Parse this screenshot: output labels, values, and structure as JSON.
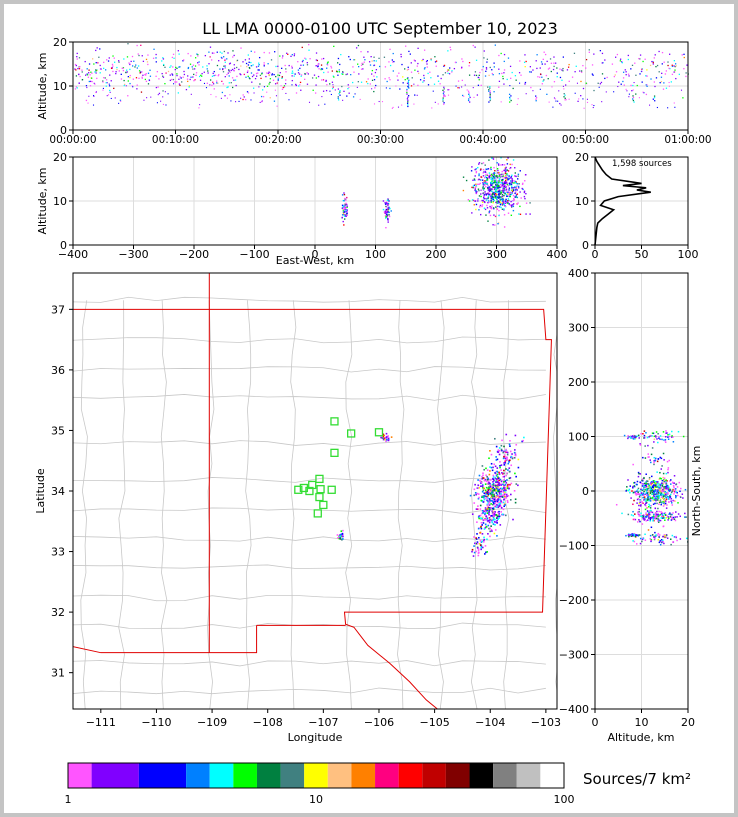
{
  "title": "LL LMA 0000-0100 UTC September 10, 2023",
  "chart_data": [
    {
      "type": "scatter",
      "panel": "time-height",
      "ylabel": "Altitude, km",
      "ylim": [
        0,
        20
      ],
      "yticks": [
        "0",
        "10",
        "20"
      ],
      "xticks": [
        "00:00:00",
        "00:10:00",
        "00:20:00",
        "00:30:00",
        "00:40:00",
        "00:50:00",
        "01:00:00"
      ],
      "xlim_minutes": [
        0,
        60
      ],
      "grid": true
    },
    {
      "type": "scatter",
      "panel": "east-west-altitude",
      "xlabel": "East-West, km",
      "ylabel": "Altitude, km",
      "xlim": [
        -400,
        400
      ],
      "ylim": [
        0,
        20
      ],
      "xticks": [
        "−400",
        "−300",
        "−200",
        "−100",
        "0",
        "100",
        "200",
        "300",
        "400"
      ],
      "yticks": [
        "0",
        "10",
        "20"
      ],
      "grid": true,
      "clusters": [
        {
          "x": 48,
          "y": 8.5
        },
        {
          "x": 118,
          "y": 8
        },
        {
          "x": 300,
          "y": 13
        }
      ]
    },
    {
      "type": "line",
      "panel": "altitude-histogram",
      "annotation": "1,598 sources",
      "xlim": [
        0,
        100
      ],
      "ylim": [
        0,
        20
      ],
      "xticks": [
        "0",
        "50",
        "100"
      ],
      "yticks": [
        "0",
        "10",
        "20"
      ],
      "grid": true,
      "altitude_km": [
        0,
        2,
        4,
        5,
        6,
        7,
        8,
        9,
        10,
        11,
        12,
        12.5,
        13,
        13.5,
        14,
        15,
        16,
        17,
        18,
        19,
        20
      ],
      "count": [
        0,
        1,
        2,
        3,
        8,
        14,
        20,
        6,
        10,
        25,
        60,
        45,
        55,
        30,
        50,
        18,
        12,
        8,
        5,
        2,
        0
      ]
    },
    {
      "type": "scatter",
      "panel": "plan-view",
      "xlabel": "Longitude",
      "ylabel": "Latitude",
      "xlim": [
        -111.5,
        -102.8
      ],
      "ylim": [
        30.4,
        37.6
      ],
      "xticks": [
        "−111",
        "−110",
        "−109",
        "−108",
        "−107",
        "−106",
        "−105",
        "−104",
        "−103"
      ],
      "yticks": [
        "31",
        "32",
        "33",
        "34",
        "35",
        "36",
        "37"
      ],
      "stations": [
        {
          "lon": -106.8,
          "lat": 35.15
        },
        {
          "lon": -106.5,
          "lat": 34.95
        },
        {
          "lon": -106.0,
          "lat": 34.97
        },
        {
          "lon": -106.8,
          "lat": 34.63
        },
        {
          "lon": -107.07,
          "lat": 34.2
        },
        {
          "lon": -107.2,
          "lat": 34.1
        },
        {
          "lon": -107.35,
          "lat": 34.05
        },
        {
          "lon": -107.45,
          "lat": 34.02
        },
        {
          "lon": -107.25,
          "lat": 34.0
        },
        {
          "lon": -107.05,
          "lat": 34.03
        },
        {
          "lon": -106.85,
          "lat": 34.02
        },
        {
          "lon": -107.07,
          "lat": 33.9
        },
        {
          "lon": -107.0,
          "lat": 33.77
        },
        {
          "lon": -107.1,
          "lat": 33.63
        }
      ],
      "clusters": [
        {
          "lon": -103.95,
          "lat": 34.0
        },
        {
          "lon": -104.05,
          "lat": 33.55
        },
        {
          "lon": -103.75,
          "lat": 34.6
        },
        {
          "lon": -105.9,
          "lat": 34.9
        },
        {
          "lon": -106.7,
          "lat": 33.27
        },
        {
          "lon": -104.2,
          "lat": 33.1
        }
      ]
    },
    {
      "type": "scatter",
      "panel": "altitude-north-south",
      "xlabel": "Altitude, km",
      "ylabel": "North-South, km",
      "xlim": [
        0,
        20
      ],
      "ylim": [
        -400,
        400
      ],
      "xticks": [
        "0",
        "10",
        "20"
      ],
      "yticks": [
        "−400",
        "−300",
        "−200",
        "−100",
        "0",
        "100",
        "200",
        "300",
        "400"
      ],
      "grid": true
    }
  ],
  "colorbar": {
    "label": "Sources/7 km²",
    "ticks": [
      "1",
      "10",
      "100"
    ],
    "colors": [
      "#ff55ff",
      "#8000ff",
      "#0000ff",
      "#0080ff",
      "#00ffff",
      "#00ff00",
      "#008040",
      "#408080",
      "#ffff00",
      "#ffc080",
      "#ff8000",
      "#ff0080",
      "#ff0000",
      "#c00000",
      "#800000",
      "#000000",
      "#808080",
      "#c0c0c0",
      "#ffffff"
    ]
  }
}
